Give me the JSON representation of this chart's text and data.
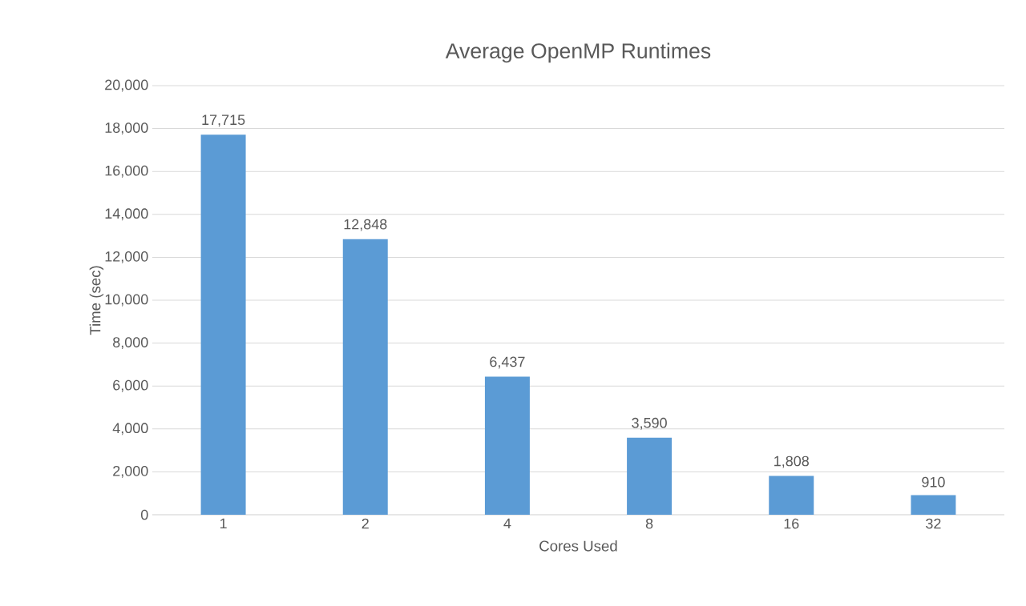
{
  "chart_data": {
    "type": "bar",
    "title": "Average OpenMP Runtimes",
    "xlabel": "Cores Used",
    "ylabel": "Time (sec)",
    "categories": [
      "1",
      "2",
      "4",
      "8",
      "16",
      "32"
    ],
    "values": [
      17715,
      12848,
      6437,
      3590,
      1808,
      910
    ],
    "value_labels": [
      "17,715",
      "12,848",
      "6,437",
      "3,590",
      "1,808",
      "910"
    ],
    "color": "#5b9bd5",
    "ylim": [
      0,
      20000
    ],
    "yticks": [
      0,
      {
        "value": 2000,
        "label": "2,000"
      },
      {
        "value": 4000,
        "label": "4,000"
      },
      {
        "value": 6000,
        "label": "6,000"
      },
      {
        "value": 8000,
        "label": "8,000"
      },
      {
        "value": 10000,
        "label": "10,000"
      },
      {
        "value": 12000,
        "label": "12,000"
      },
      {
        "value": 14000,
        "label": "14,000"
      },
      {
        "value": 16000,
        "label": "16,000"
      },
      {
        "value": 18000,
        "label": "18,000"
      },
      {
        "value": 20000,
        "label": "20,000"
      }
    ],
    "grid": "y"
  }
}
